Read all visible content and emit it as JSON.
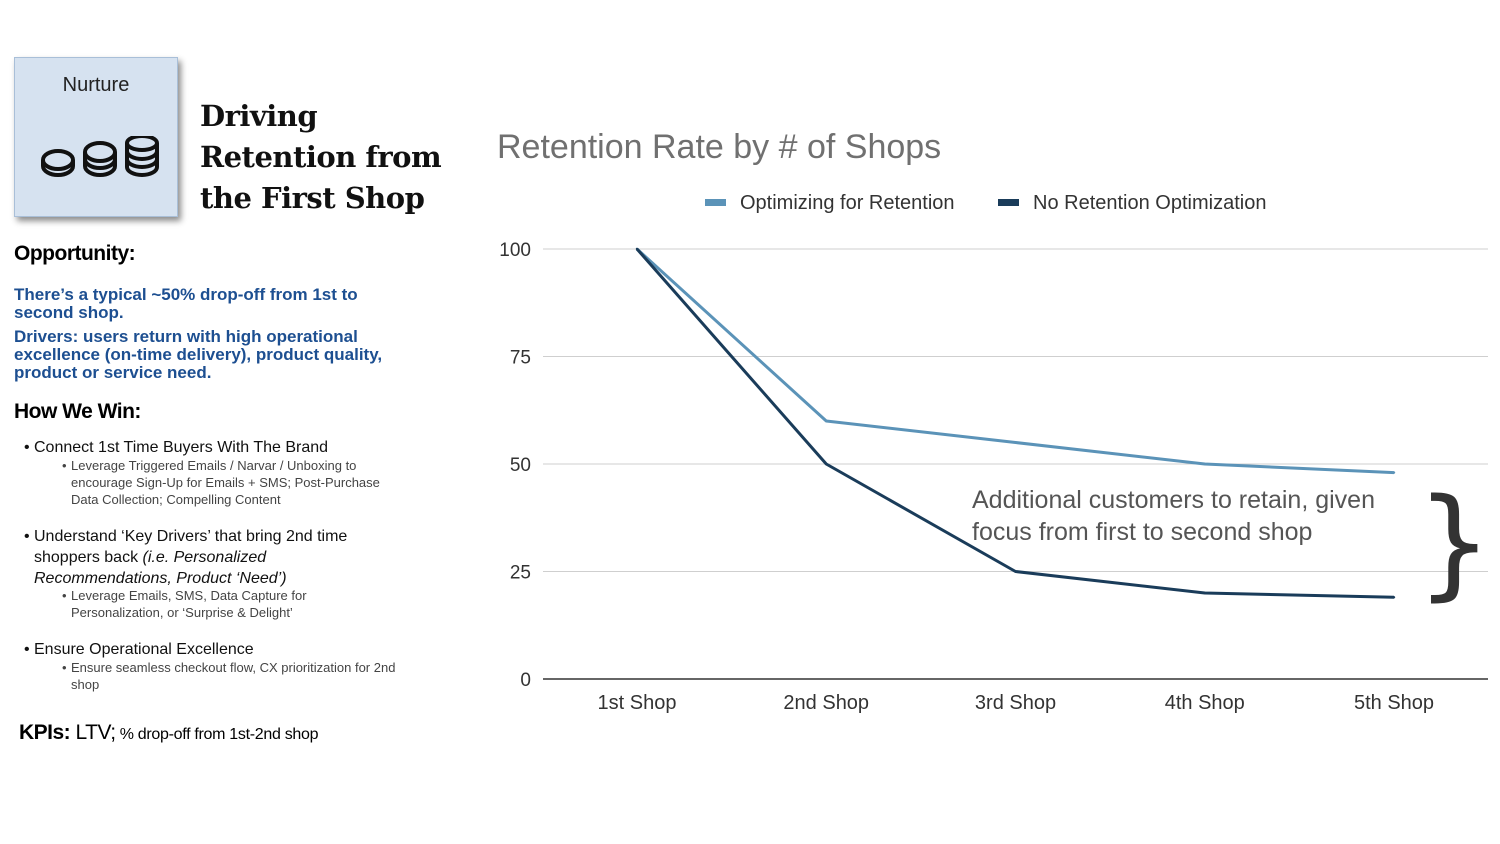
{
  "card": {
    "label": "Nurture",
    "icon": "coin-stacks-icon"
  },
  "title_lines": [
    "Driving",
    "Retention from",
    "the First Shop"
  ],
  "opportunity": {
    "heading": "Opportunity:",
    "p1": "There’s a typical ~50% drop-off from 1st to second shop.",
    "p2": "Drivers: users return with high operational excellence (on-time delivery), product quality, product or service need."
  },
  "how_we_win": {
    "heading": "How We Win:",
    "b1": {
      "text": "Connect 1st Time Buyers With The Brand",
      "sub": "Leverage Triggered Emails / Narvar / Unboxing to encourage Sign-Up for Emails + SMS; Post-Purchase Data Collection; Compelling Content"
    },
    "b2": {
      "text": "Understand ‘Key Drivers’ that bring 2nd time shoppers back ",
      "text_italic": "(i.e. Personalized Recommendations, Product ‘Need’)",
      "sub": "Leverage Emails, SMS, Data Capture for Personalization, or ‘Surprise & Delight’"
    },
    "b3": {
      "text": "Ensure Operational Excellence",
      "sub": "Ensure seamless checkout flow, CX prioritization for 2nd shop"
    }
  },
  "kpis": {
    "label": "KPIs:",
    "main": " LTV;",
    "rest": " % drop-off from 1st-2nd shop"
  },
  "chart_data": {
    "type": "line",
    "title": "Retention Rate by # of Shops",
    "categories": [
      "1st Shop",
      "2nd Shop",
      "3rd Shop",
      "4th Shop",
      "5th Shop"
    ],
    "series": [
      {
        "name": "Optimizing for Retention",
        "color": "#5b93b8",
        "values": [
          100,
          60,
          55,
          50,
          48
        ]
      },
      {
        "name": "No Retention Optimization",
        "color": "#1a3c5a",
        "values": [
          100,
          50,
          25,
          20,
          19
        ]
      }
    ],
    "ylim": [
      0,
      100
    ],
    "yticks": [
      0,
      25,
      50,
      75,
      100
    ],
    "grid": true,
    "legend": "top-center",
    "annotation": "Additional customers to retain, given focus from first to second shop",
    "brace": "}"
  }
}
